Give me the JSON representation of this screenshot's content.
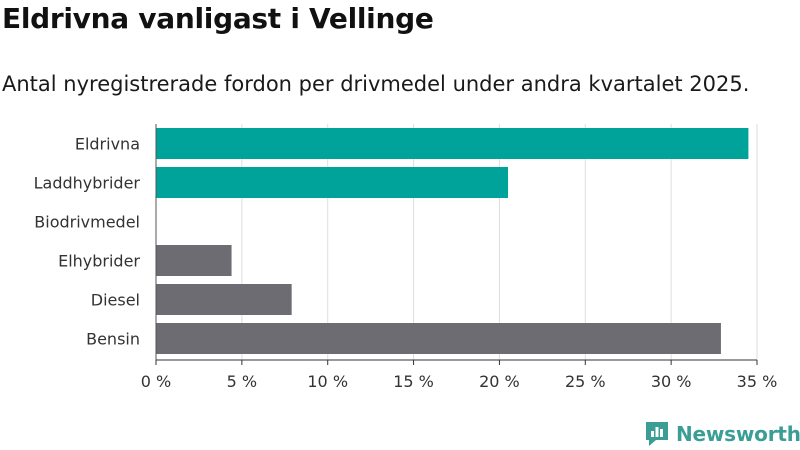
{
  "header": {
    "title": "Eldrivna vanligast i Vellinge",
    "subtitle": "Antal nyregistrerade fordon per drivmedel under andra kvartalet 2025."
  },
  "brand": {
    "name": "Newsworthy",
    "logo_icon": "newsworthy-logo-icon",
    "color": "#3a9d96"
  },
  "chart_data": {
    "type": "bar",
    "orientation": "horizontal",
    "categories": [
      "Eldrivna",
      "Laddhybrider",
      "Biodrivmedel",
      "Elhybrider",
      "Diesel",
      "Bensin"
    ],
    "values": [
      34.5,
      20.5,
      0,
      4.4,
      7.9,
      32.9
    ],
    "bar_colors": [
      "#00a39a",
      "#00a39a",
      "#00a39a",
      "#6d6c73",
      "#6d6c73",
      "#6d6c73"
    ],
    "xlim": [
      0,
      35
    ],
    "x_ticks": [
      0,
      5,
      10,
      15,
      20,
      25,
      30,
      35
    ],
    "x_tick_labels": [
      "0 %",
      "5 %",
      "10 %",
      "15 %",
      "20 %",
      "25 %",
      "30 %",
      "35 %"
    ],
    "grid": true
  }
}
